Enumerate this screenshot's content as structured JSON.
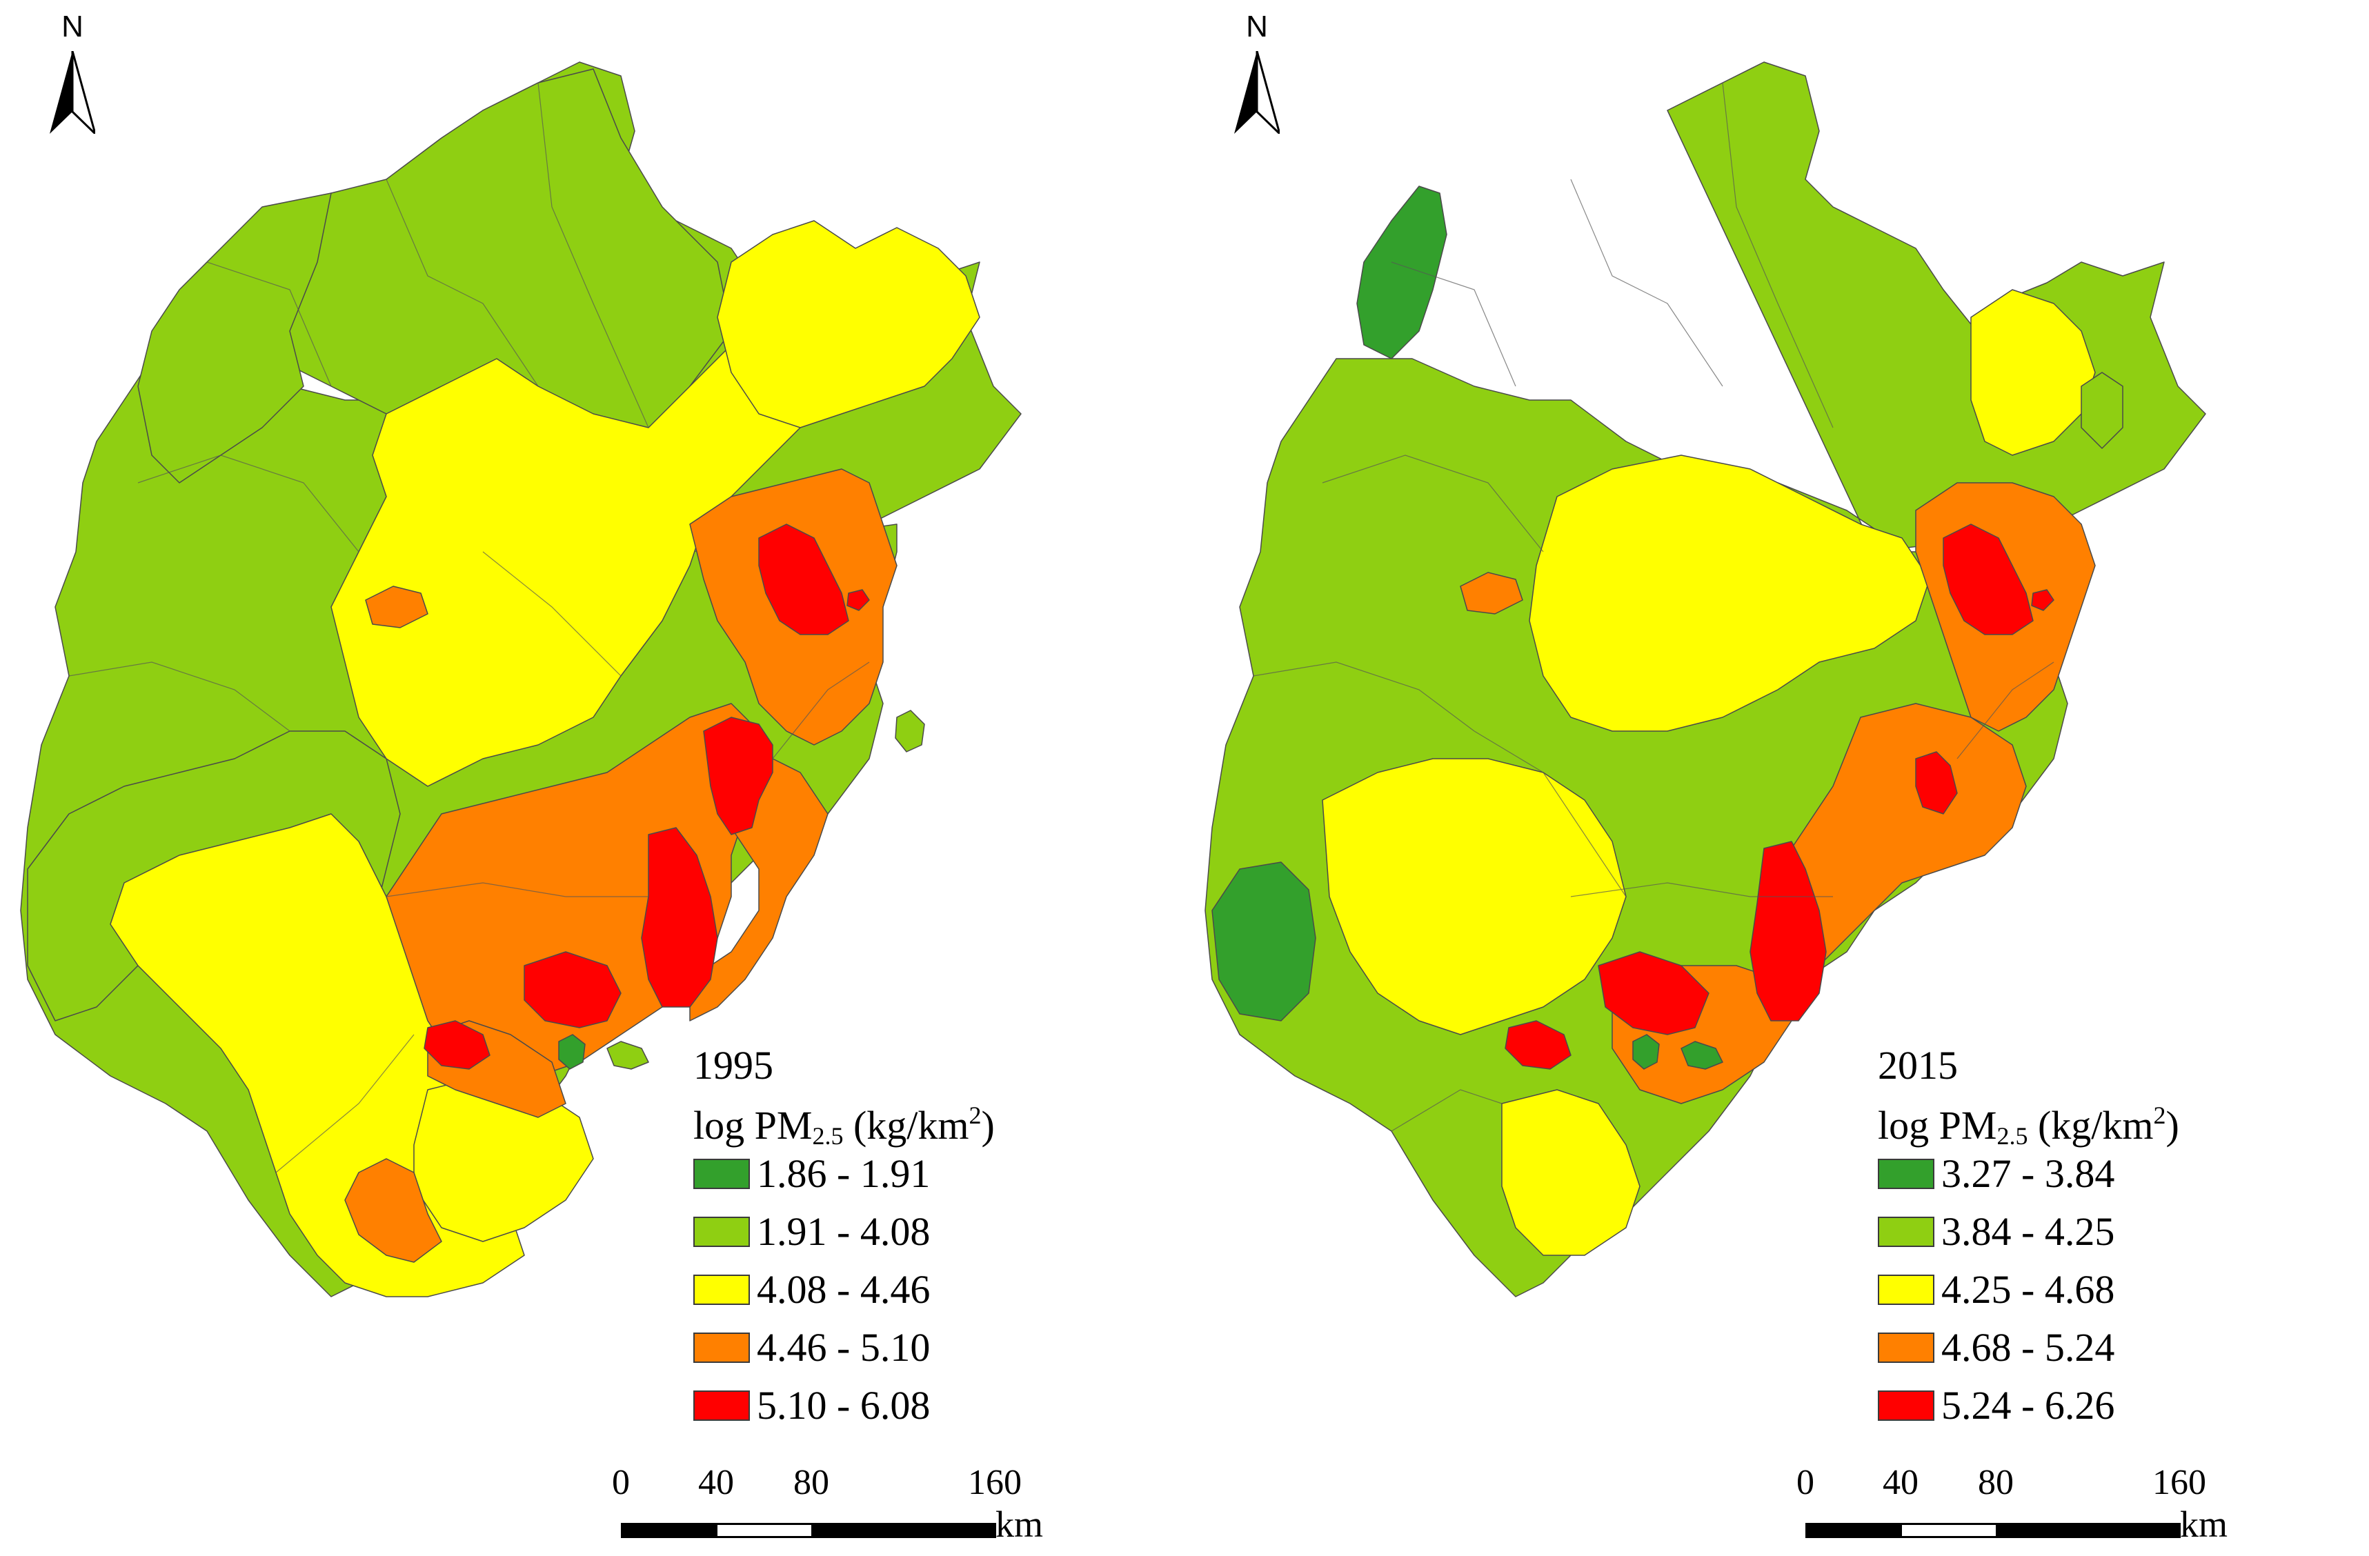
{
  "figure": {
    "north_label": "N",
    "legend_title_prefix": "log PM",
    "legend_title_sub": "2.5",
    "legend_title_unit_pre": " (kg/km",
    "legend_title_unit_sup": "2",
    "legend_title_unit_post": ")",
    "scale": {
      "ticks": [
        "0",
        "40",
        "80",
        "160"
      ],
      "unit": "km"
    }
  },
  "panels": [
    {
      "year": "1995",
      "legend": [
        {
          "range": "1.86 - 1.91",
          "color": "#33a02c"
        },
        {
          "range": "1.91 - 4.08",
          "color": "#8fcf12"
        },
        {
          "range": "4.08 - 4.46",
          "color": "#ffff00"
        },
        {
          "range": "4.46 - 5.10",
          "color": "#ff8000"
        },
        {
          "range": "5.10 - 6.08",
          "color": "#ff0000"
        }
      ]
    },
    {
      "year": "2015",
      "legend": [
        {
          "range": "3.27 - 3.84",
          "color": "#33a02c"
        },
        {
          "range": "3.84 - 4.25",
          "color": "#8fcf12"
        },
        {
          "range": "4.25 - 4.68",
          "color": "#ffff00"
        },
        {
          "range": "4.68 - 5.24",
          "color": "#ff8000"
        },
        {
          "range": "5.24 - 6.26",
          "color": "#ff0000"
        }
      ]
    }
  ]
}
